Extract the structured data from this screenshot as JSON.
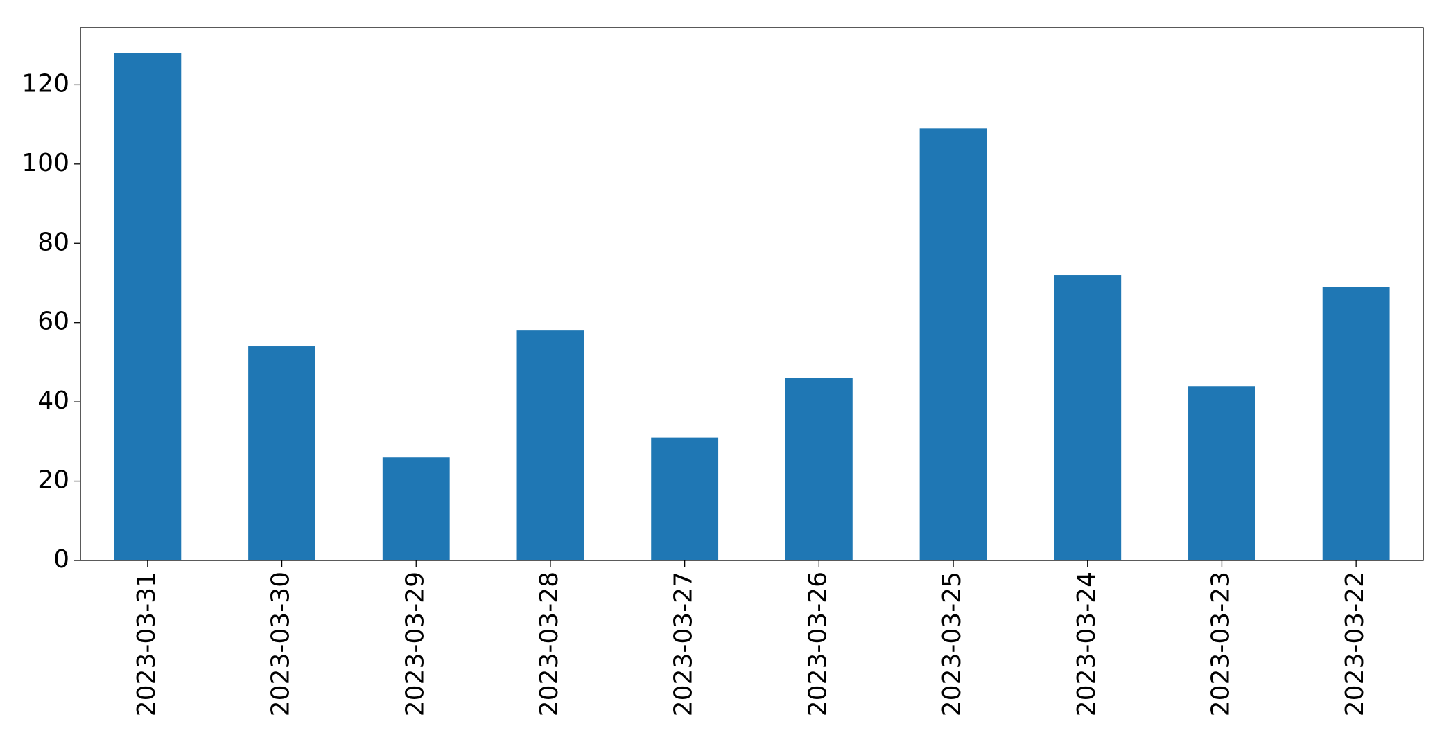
{
  "chart_data": {
    "type": "bar",
    "categories": [
      "2023-03-31",
      "2023-03-30",
      "2023-03-29",
      "2023-03-28",
      "2023-03-27",
      "2023-03-26",
      "2023-03-25",
      "2023-03-24",
      "2023-03-23",
      "2023-03-22"
    ],
    "values": [
      128,
      54,
      26,
      58,
      31,
      46,
      109,
      72,
      44,
      69
    ],
    "color": "#1f77b4",
    "ylim": [
      0,
      134.4
    ],
    "yticks": [
      0,
      20,
      40,
      60,
      80,
      100,
      120
    ],
    "grid": false
  }
}
